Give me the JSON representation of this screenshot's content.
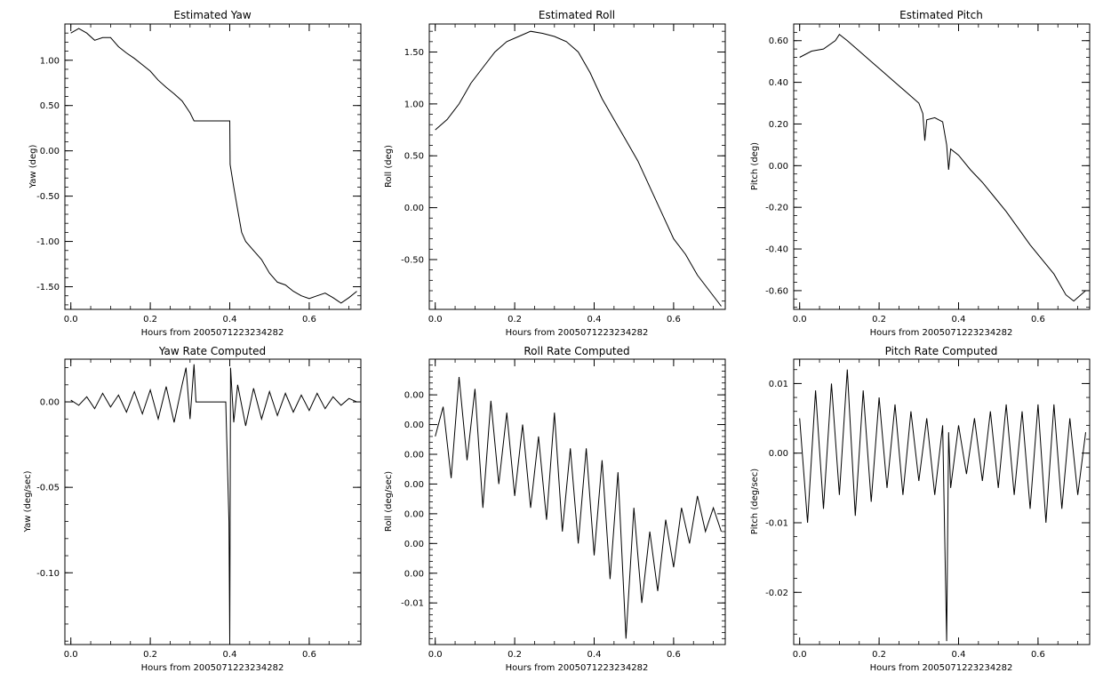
{
  "chart_data": [
    {
      "type": "line",
      "title": "Estimated Yaw",
      "xlabel": "Hours from 2005071223234282",
      "ylabel": "Yaw (deg)",
      "xlim": [
        -0.015,
        0.73
      ],
      "ylim": [
        -1.75,
        1.4
      ],
      "xticks": [
        0.0,
        0.2,
        0.4,
        0.6
      ],
      "xtick_labels": [
        "0.0",
        "0.2",
        "0.4",
        "0.6"
      ],
      "yticks": [
        -1.5,
        -1.0,
        -0.5,
        0.0,
        0.5,
        1.0
      ],
      "ytick_labels": [
        "-1.50",
        "-1.00",
        "-0.50",
        "0.00",
        "0.50",
        "1.00"
      ],
      "series": [
        {
          "x": [
            0.0,
            0.02,
            0.04,
            0.06,
            0.08,
            0.1,
            0.12,
            0.14,
            0.16,
            0.18,
            0.2,
            0.22,
            0.24,
            0.26,
            0.28,
            0.3,
            0.31,
            0.35,
            0.4,
            0.401,
            0.41,
            0.42,
            0.43,
            0.44,
            0.46,
            0.48,
            0.5,
            0.52,
            0.54,
            0.56,
            0.58,
            0.6,
            0.62,
            0.64,
            0.66,
            0.68,
            0.7,
            0.72
          ],
          "y": [
            1.3,
            1.35,
            1.3,
            1.22,
            1.25,
            1.25,
            1.15,
            1.08,
            1.02,
            0.95,
            0.88,
            0.78,
            0.7,
            0.63,
            0.55,
            0.42,
            0.33,
            0.33,
            0.33,
            -0.15,
            -0.4,
            -0.65,
            -0.9,
            -1.0,
            -1.1,
            -1.2,
            -1.35,
            -1.45,
            -1.48,
            -1.55,
            -1.6,
            -1.63,
            -1.6,
            -1.57,
            -1.62,
            -1.68,
            -1.62,
            -1.55
          ]
        }
      ]
    },
    {
      "type": "line",
      "title": "Estimated Roll",
      "xlabel": "Hours from 2005071223234282",
      "ylabel": "Roll (deg)",
      "xlim": [
        -0.015,
        0.73
      ],
      "ylim": [
        -0.98,
        1.77
      ],
      "xticks": [
        0.0,
        0.2,
        0.4,
        0.6
      ],
      "xtick_labels": [
        "0.0",
        "0.2",
        "0.4",
        "0.6"
      ],
      "yticks": [
        -0.5,
        0.0,
        0.5,
        1.0,
        1.5
      ],
      "ytick_labels": [
        "-0.50",
        "0.00",
        "0.50",
        "1.00",
        "1.50"
      ],
      "series": [
        {
          "x": [
            0.0,
            0.03,
            0.06,
            0.09,
            0.12,
            0.15,
            0.18,
            0.21,
            0.24,
            0.27,
            0.3,
            0.33,
            0.36,
            0.39,
            0.42,
            0.45,
            0.48,
            0.51,
            0.54,
            0.57,
            0.6,
            0.63,
            0.66,
            0.69,
            0.72
          ],
          "y": [
            0.75,
            0.85,
            1.0,
            1.2,
            1.35,
            1.5,
            1.6,
            1.65,
            1.7,
            1.68,
            1.65,
            1.6,
            1.5,
            1.3,
            1.05,
            0.85,
            0.65,
            0.45,
            0.2,
            -0.05,
            -0.3,
            -0.45,
            -0.65,
            -0.8,
            -0.95
          ]
        }
      ]
    },
    {
      "type": "line",
      "title": "Estimated Pitch",
      "xlabel": "Hours from 2005071223234282",
      "ylabel": "Pitch (deg)",
      "xlim": [
        -0.015,
        0.73
      ],
      "ylim": [
        -0.69,
        0.68
      ],
      "xticks": [
        0.0,
        0.2,
        0.4,
        0.6
      ],
      "xtick_labels": [
        "0.0",
        "0.2",
        "0.4",
        "0.6"
      ],
      "yticks": [
        -0.6,
        -0.4,
        -0.2,
        0.0,
        0.2,
        0.4,
        0.6
      ],
      "ytick_labels": [
        "-0.60",
        "-0.40",
        "-0.20",
        "0.00",
        "0.20",
        "0.40",
        "0.60"
      ],
      "series": [
        {
          "x": [
            0.0,
            0.03,
            0.06,
            0.09,
            0.1,
            0.12,
            0.15,
            0.18,
            0.21,
            0.24,
            0.27,
            0.3,
            0.31,
            0.315,
            0.32,
            0.34,
            0.36,
            0.37,
            0.375,
            0.38,
            0.4,
            0.43,
            0.46,
            0.49,
            0.52,
            0.55,
            0.58,
            0.61,
            0.64,
            0.67,
            0.69,
            0.72
          ],
          "y": [
            0.52,
            0.55,
            0.56,
            0.6,
            0.63,
            0.6,
            0.55,
            0.5,
            0.45,
            0.4,
            0.35,
            0.3,
            0.25,
            0.12,
            0.22,
            0.23,
            0.21,
            0.1,
            -0.02,
            0.08,
            0.05,
            -0.02,
            -0.08,
            -0.15,
            -0.22,
            -0.3,
            -0.38,
            -0.45,
            -0.52,
            -0.62,
            -0.65,
            -0.6
          ]
        }
      ]
    },
    {
      "type": "line",
      "title": "Yaw Rate Computed",
      "xlabel": "Hours from 2005071223234282",
      "ylabel": "Yaw (deg/sec)",
      "xlim": [
        -0.015,
        0.73
      ],
      "ylim": [
        -0.142,
        0.025
      ],
      "xticks": [
        0.0,
        0.2,
        0.4,
        0.6
      ],
      "xtick_labels": [
        "0.0",
        "0.2",
        "0.4",
        "0.6"
      ],
      "yticks": [
        -0.1,
        -0.05,
        0.0
      ],
      "ytick_labels": [
        "-0.10",
        "-0.05",
        "0.00"
      ],
      "series": [
        {
          "x": [
            0.0,
            0.02,
            0.04,
            0.06,
            0.08,
            0.1,
            0.12,
            0.14,
            0.16,
            0.18,
            0.2,
            0.22,
            0.24,
            0.26,
            0.28,
            0.29,
            0.3,
            0.31,
            0.315,
            0.39,
            0.398,
            0.4,
            0.402,
            0.41,
            0.42,
            0.44,
            0.46,
            0.48,
            0.5,
            0.52,
            0.54,
            0.56,
            0.58,
            0.6,
            0.62,
            0.64,
            0.66,
            0.68,
            0.7,
            0.72
          ],
          "y": [
            0.001,
            -0.002,
            0.003,
            -0.004,
            0.005,
            -0.003,
            0.004,
            -0.006,
            0.006,
            -0.007,
            0.007,
            -0.01,
            0.009,
            -0.012,
            0.01,
            0.02,
            -0.01,
            0.022,
            0.0,
            0.0,
            -0.07,
            -0.14,
            0.02,
            -0.012,
            0.01,
            -0.014,
            0.008,
            -0.01,
            0.006,
            -0.008,
            0.005,
            -0.006,
            0.004,
            -0.005,
            0.005,
            -0.004,
            0.003,
            -0.002,
            0.002,
            0.0
          ]
        }
      ]
    },
    {
      "type": "line",
      "title": "Roll Rate Computed",
      "xlabel": "Hours from 2005071223234282",
      "ylabel": "Roll (deg/sec)",
      "xlim": [
        -0.015,
        0.73
      ],
      "ylim": [
        -0.0135,
        0.0105
      ],
      "xticks": [
        0.0,
        0.2,
        0.4,
        0.6
      ],
      "xtick_labels": [
        "0.0",
        "0.2",
        "0.4",
        "0.6"
      ],
      "yticks": [
        -0.01,
        -0.0075,
        -0.005,
        -0.0025,
        0.0,
        0.0025,
        0.005,
        0.0075
      ],
      "ytick_labels": [
        "-0.01",
        "0.00",
        "0.00",
        "0.00",
        "0.00",
        "0.00",
        "0.00",
        "0.00"
      ],
      "series": [
        {
          "x": [
            0.0,
            0.02,
            0.04,
            0.06,
            0.08,
            0.1,
            0.12,
            0.14,
            0.16,
            0.18,
            0.2,
            0.22,
            0.24,
            0.26,
            0.28,
            0.3,
            0.32,
            0.34,
            0.36,
            0.38,
            0.4,
            0.42,
            0.44,
            0.46,
            0.48,
            0.5,
            0.52,
            0.54,
            0.56,
            0.58,
            0.6,
            0.62,
            0.64,
            0.66,
            0.68,
            0.7,
            0.72
          ],
          "y": [
            0.004,
            0.0065,
            0.0005,
            0.009,
            0.002,
            0.008,
            -0.002,
            0.007,
            0.0,
            0.006,
            -0.001,
            0.005,
            -0.002,
            0.004,
            -0.003,
            0.006,
            -0.004,
            0.003,
            -0.005,
            0.003,
            -0.006,
            0.002,
            -0.008,
            0.001,
            -0.013,
            -0.002,
            -0.01,
            -0.004,
            -0.009,
            -0.003,
            -0.007,
            -0.002,
            -0.005,
            -0.001,
            -0.004,
            -0.002,
            -0.004
          ]
        }
      ]
    },
    {
      "type": "line",
      "title": "Pitch Rate Computed",
      "xlabel": "Hours from 2005071223234282",
      "ylabel": "Pitch (deg/sec)",
      "xlim": [
        -0.015,
        0.73
      ],
      "ylim": [
        -0.0275,
        0.0135
      ],
      "xticks": [
        0.0,
        0.2,
        0.4,
        0.6
      ],
      "xtick_labels": [
        "0.0",
        "0.2",
        "0.4",
        "0.6"
      ],
      "yticks": [
        -0.02,
        -0.01,
        0.0,
        0.01
      ],
      "ytick_labels": [
        "-0.02",
        "-0.01",
        "0.00",
        "0.01"
      ],
      "series": [
        {
          "x": [
            0.0,
            0.02,
            0.04,
            0.06,
            0.08,
            0.1,
            0.12,
            0.14,
            0.16,
            0.18,
            0.2,
            0.22,
            0.24,
            0.26,
            0.28,
            0.3,
            0.32,
            0.34,
            0.36,
            0.365,
            0.37,
            0.375,
            0.38,
            0.4,
            0.42,
            0.44,
            0.46,
            0.48,
            0.5,
            0.52,
            0.54,
            0.56,
            0.58,
            0.6,
            0.62,
            0.64,
            0.66,
            0.68,
            0.7,
            0.72
          ],
          "y": [
            0.005,
            -0.01,
            0.009,
            -0.008,
            0.01,
            -0.006,
            0.012,
            -0.009,
            0.009,
            -0.007,
            0.008,
            -0.005,
            0.007,
            -0.006,
            0.006,
            -0.004,
            0.005,
            -0.006,
            0.004,
            -0.012,
            -0.027,
            0.003,
            -0.005,
            0.004,
            -0.003,
            0.005,
            -0.004,
            0.006,
            -0.005,
            0.007,
            -0.006,
            0.006,
            -0.008,
            0.007,
            -0.01,
            0.007,
            -0.008,
            0.005,
            -0.006,
            0.003
          ]
        }
      ]
    }
  ]
}
